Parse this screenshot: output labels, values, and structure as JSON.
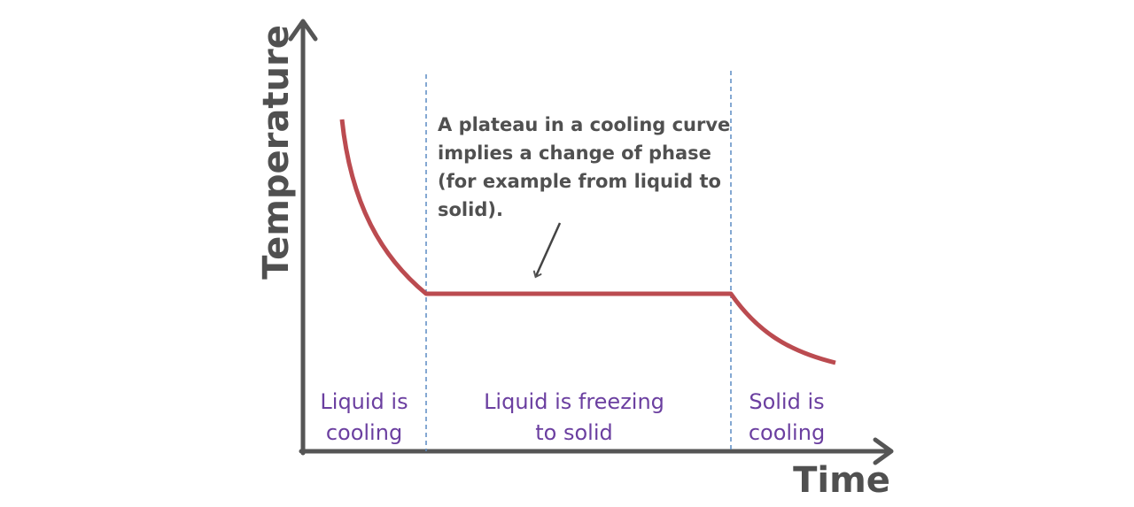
{
  "axes": {
    "y_label": "Temperature",
    "x_label": "Time"
  },
  "annotation": {
    "lines": [
      "A plateau in a cooling curve",
      "implies a change of phase",
      "(for example from liquid to",
      "solid)."
    ]
  },
  "regions": [
    {
      "lines": [
        "Liquid is",
        "cooling"
      ]
    },
    {
      "lines": [
        "Liquid is freezing",
        "to solid"
      ]
    },
    {
      "lines": [
        "Solid is",
        "cooling"
      ]
    }
  ]
}
